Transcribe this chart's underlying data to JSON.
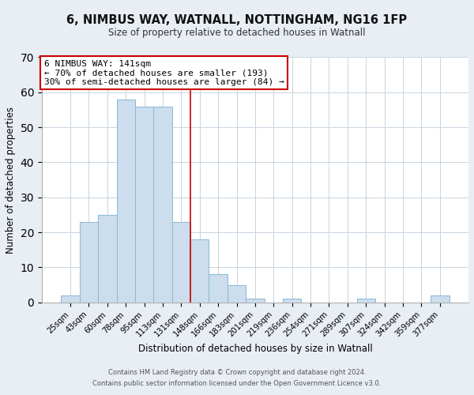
{
  "title_line1": "6, NIMBUS WAY, WATNALL, NOTTINGHAM, NG16 1FP",
  "title_line2": "Size of property relative to detached houses in Watnall",
  "xlabel": "Distribution of detached houses by size in Watnall",
  "ylabel": "Number of detached properties",
  "bar_labels": [
    "25sqm",
    "43sqm",
    "60sqm",
    "78sqm",
    "95sqm",
    "113sqm",
    "131sqm",
    "148sqm",
    "166sqm",
    "183sqm",
    "201sqm",
    "219sqm",
    "236sqm",
    "254sqm",
    "271sqm",
    "289sqm",
    "307sqm",
    "324sqm",
    "342sqm",
    "359sqm",
    "377sqm"
  ],
  "bar_values": [
    2,
    23,
    25,
    58,
    56,
    56,
    23,
    18,
    8,
    5,
    1,
    0,
    1,
    0,
    0,
    0,
    1,
    0,
    0,
    0,
    2
  ],
  "bar_color": "#ccdded",
  "bar_edge_color": "#88b8d8",
  "ylim": [
    0,
    70
  ],
  "yticks": [
    0,
    10,
    20,
    30,
    40,
    50,
    60,
    70
  ],
  "property_line_index": 7,
  "annotation_title": "6 NIMBUS WAY: 141sqm",
  "annotation_line1": "← 70% of detached houses are smaller (193)",
  "annotation_line2": "30% of semi-detached houses are larger (84) →",
  "annotation_box_color": "#ffffff",
  "annotation_box_edge_color": "#cc0000",
  "footer_line1": "Contains HM Land Registry data © Crown copyright and database right 2024.",
  "footer_line2": "Contains public sector information licensed under the Open Government Licence v3.0.",
  "background_color": "#e8eef4",
  "plot_background_color": "#ffffff",
  "grid_color": "#c8d4de"
}
